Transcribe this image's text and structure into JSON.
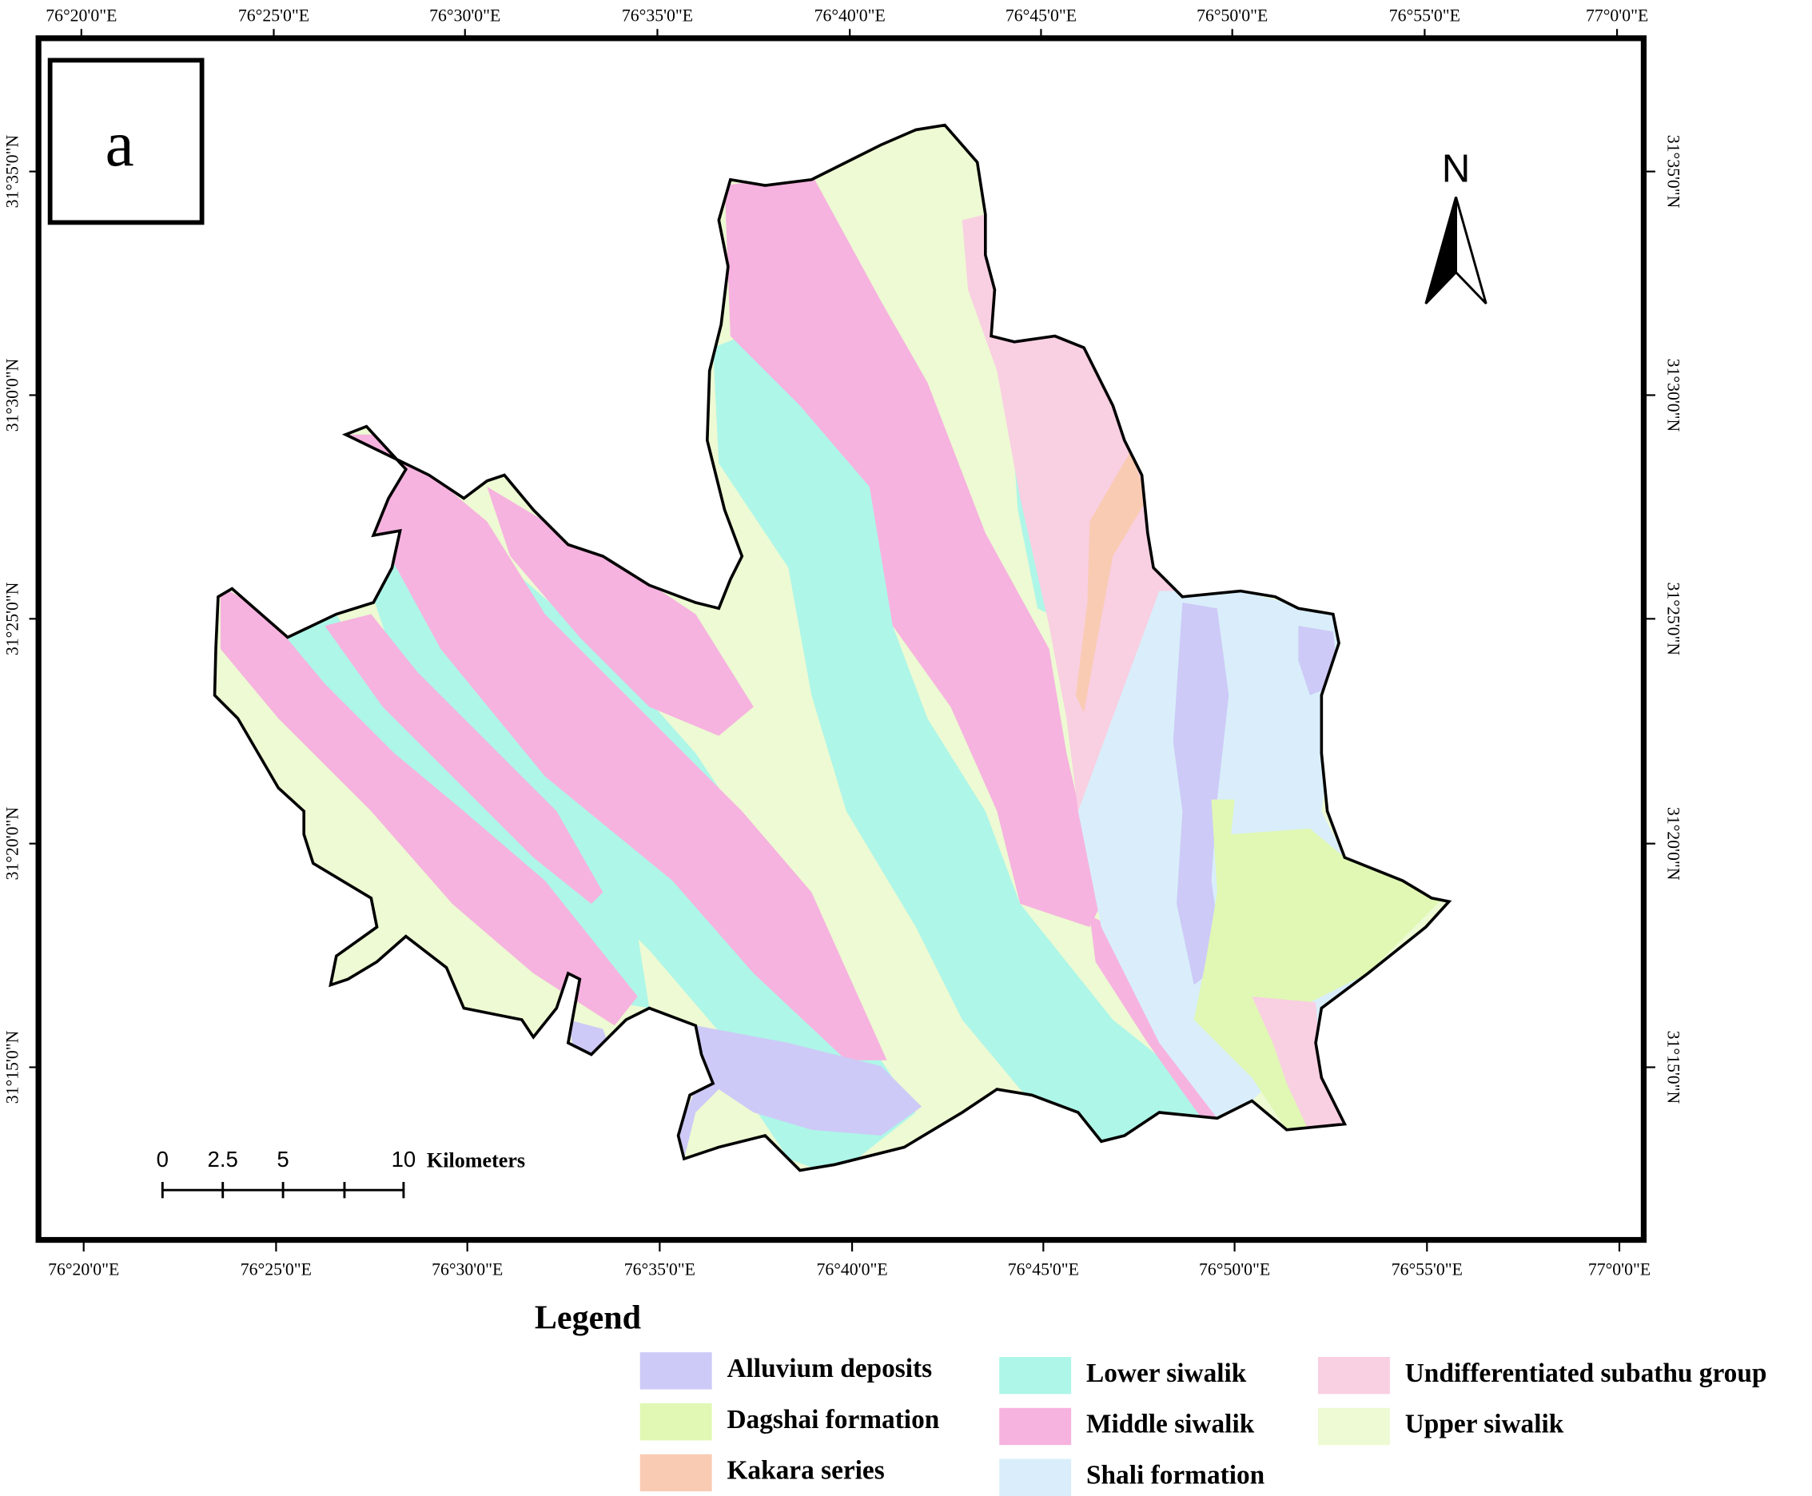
{
  "panel_label": "a",
  "north_label": "N",
  "graticule": {
    "top": [
      "76°20'0\"E",
      "76°25'0\"E",
      "76°30'0\"E",
      "76°35'0\"E",
      "76°40'0\"E",
      "76°45'0\"E",
      "76°50'0\"E",
      "76°55'0\"E",
      "77°0'0\"E"
    ],
    "bottom": [
      "76°20'0\"E",
      "76°25'0\"E",
      "76°30'0\"E",
      "76°35'0\"E",
      "76°40'0\"E",
      "76°45'0\"E",
      "76°50'0\"E",
      "76°55'0\"E",
      "77°0'0\"E"
    ],
    "left": [
      "31°35'0\"N",
      "31°30'0\"N",
      "31°25'0\"N",
      "31°20'0\"N",
      "31°15'0\"N"
    ],
    "right": [
      "31°35'0\"N",
      "31°30'0\"N",
      "31°25'0\"N",
      "31°20'0\"N",
      "31°15'0\"N"
    ]
  },
  "scale_bar": {
    "labels": [
      "0",
      "2.5",
      "5",
      "10"
    ],
    "unit": "Kilometers"
  },
  "legend": {
    "title": "Legend",
    "items": [
      {
        "label": "Alluvium deposits",
        "color": "#cdcaf7"
      },
      {
        "label": "Dagshai formation",
        "color": "#e0f8b3"
      },
      {
        "label": "Kakara series",
        "color": "#f9cbb2"
      },
      {
        "label": "Lower siwalik",
        "color": "#aef6e8"
      },
      {
        "label": "Middle siwalik",
        "color": "#f6b3df"
      },
      {
        "label": "Shali formation",
        "color": "#d9eefa"
      },
      {
        "label": "Undifferentiated subathu group",
        "color": "#f9cfe2"
      },
      {
        "label": "Upper siwalik",
        "color": "#edfad3"
      }
    ]
  }
}
